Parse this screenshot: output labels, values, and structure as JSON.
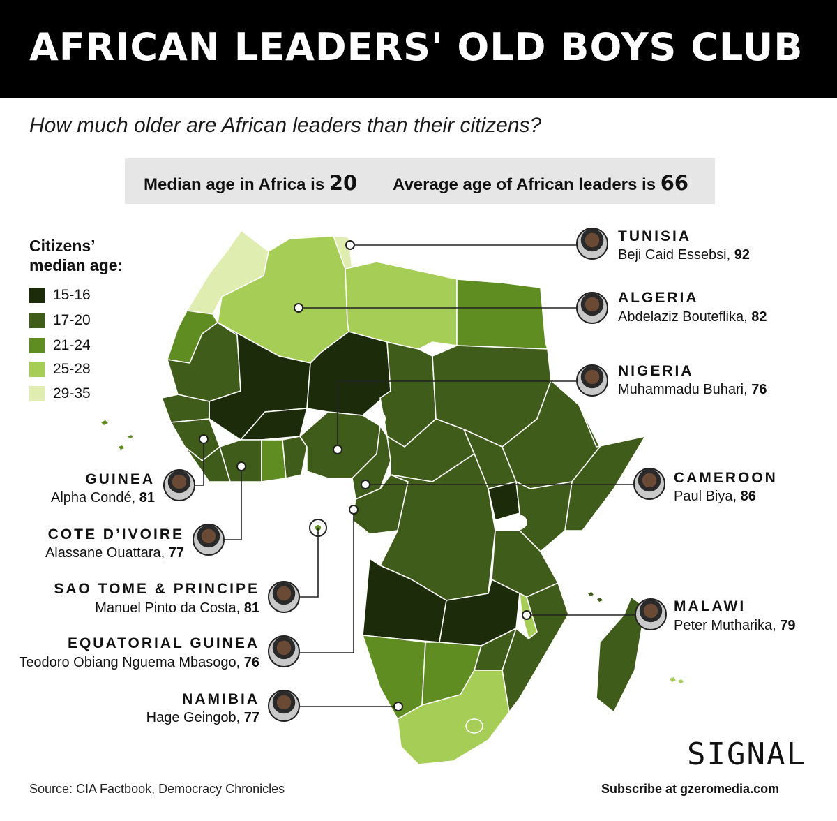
{
  "title": "AFRICAN LEADERS' OLD BOYS CLUB",
  "subtitle": "How much older are African leaders than their citizens?",
  "stats": {
    "median_label": "Median age in Africa is",
    "median_value": "20",
    "leaders_label": "Average age of African leaders is",
    "leaders_value": "66"
  },
  "legend": {
    "title_line1": "Citizens’",
    "title_line2": "median age:",
    "items": [
      {
        "label": "15-16",
        "color": "#1c2b0a"
      },
      {
        "label": "17-20",
        "color": "#3f5c1a"
      },
      {
        "label": "21-24",
        "color": "#5f8d22"
      },
      {
        "label": "25-28",
        "color": "#a6cd55"
      },
      {
        "label": "29-35",
        "color": "#dfeeb0"
      }
    ]
  },
  "leaders": [
    {
      "country": "TUNISIA",
      "leader": "Beji Caid Essebsi,",
      "age": "92"
    },
    {
      "country": "ALGERIA",
      "leader": "Abdelaziz Bouteflika,",
      "age": "82"
    },
    {
      "country": "NIGERIA",
      "leader": "Muhammadu Buhari,",
      "age": "76"
    },
    {
      "country": "CAMEROON",
      "leader": "Paul Biya,",
      "age": "86"
    },
    {
      "country": "MALAWI",
      "leader": "Peter Mutharika,",
      "age": "79"
    },
    {
      "country": "GUINEA",
      "leader": "Alpha Condé,",
      "age": "81"
    },
    {
      "country": "COTE D’IVOIRE",
      "leader": "Alassane Ouattara,",
      "age": "77"
    },
    {
      "country": "SAO TOME & PRINCIPE",
      "leader": "Manuel Pinto da Costa,",
      "age": "81"
    },
    {
      "country": "EQUATORIAL GUINEA",
      "leader": "Teodoro Obiang Nguema Mbasogo,",
      "age": "76"
    },
    {
      "country": "NAMIBIA",
      "leader": "Hage Geingob,",
      "age": "77"
    }
  ],
  "footer": {
    "source": "Source: CIA Factbook, Democracy Chronicles",
    "subscribe": "Subscribe at gzeromedia.com",
    "logo": "SIGNAL"
  }
}
